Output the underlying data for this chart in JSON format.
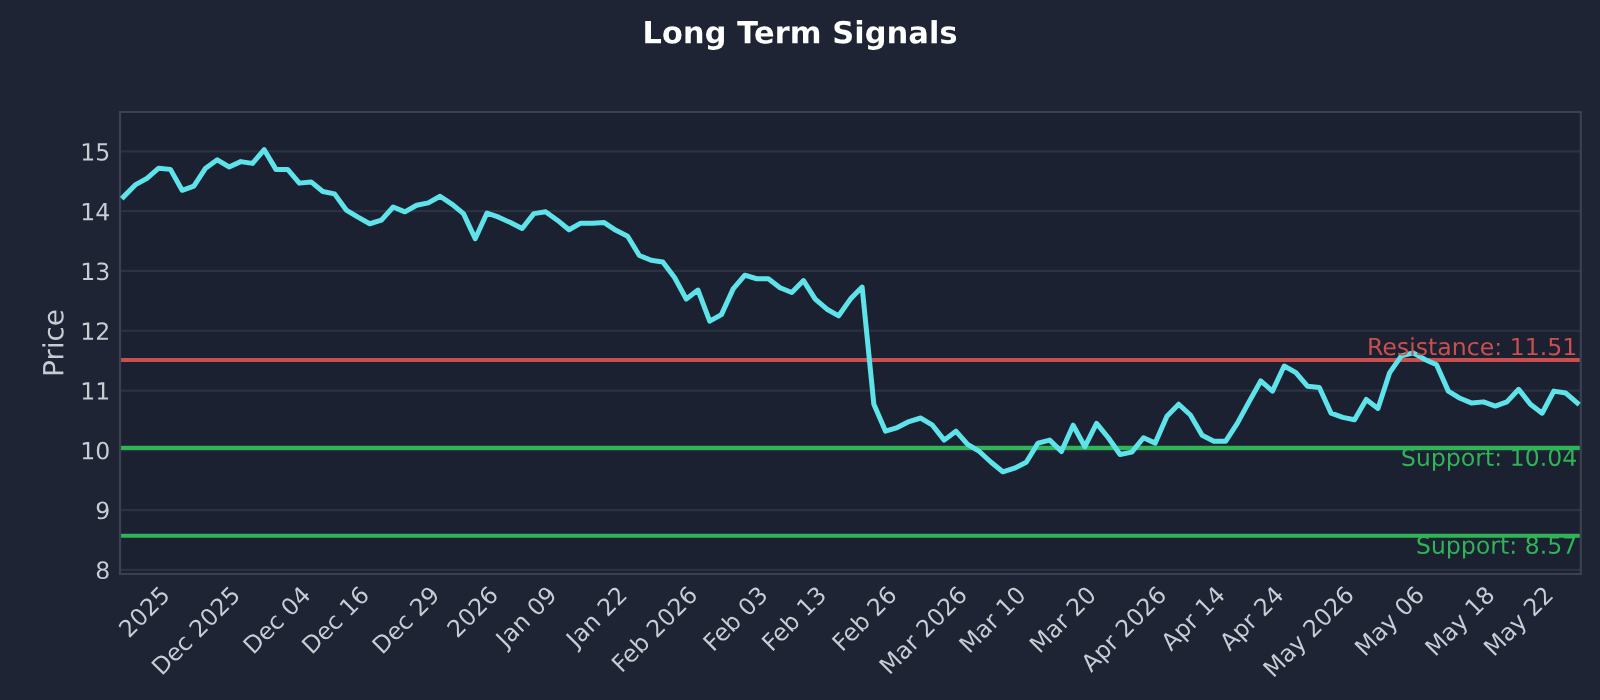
{
  "chart_data": {
    "type": "line",
    "title": "Long Term Signals",
    "ylabel": "Price",
    "categories": [
      null,
      null,
      null,
      "2025",
      null,
      null,
      null,
      null,
      null,
      "Dec 2025",
      null,
      null,
      null,
      null,
      null,
      "Dec 04",
      null,
      null,
      null,
      null,
      "Dec 16",
      null,
      null,
      null,
      null,
      null,
      "Dec 29",
      null,
      null,
      null,
      null,
      "2026",
      null,
      null,
      null,
      null,
      "Jan 09",
      null,
      null,
      null,
      null,
      null,
      "Jan 22",
      null,
      null,
      null,
      null,
      null,
      "Feb 2026",
      null,
      null,
      null,
      null,
      null,
      "Feb 03",
      null,
      null,
      null,
      null,
      "Feb 13",
      null,
      null,
      null,
      null,
      null,
      "Feb 26",
      null,
      null,
      null,
      null,
      null,
      "Mar 2026",
      null,
      null,
      null,
      null,
      "Mar 10",
      null,
      null,
      null,
      null,
      null,
      "Mar 20",
      null,
      null,
      null,
      null,
      null,
      "Apr 2026",
      null,
      null,
      null,
      null,
      "Apr 14",
      null,
      null,
      null,
      null,
      "Apr 24",
      null,
      null,
      null,
      null,
      null,
      "May 2026",
      null,
      null,
      null,
      null,
      null,
      "May 06",
      null,
      null,
      null,
      null,
      null,
      "May 18",
      null,
      null,
      null,
      null,
      "May 22",
      null,
      null,
      null
    ],
    "series": [
      {
        "color": "#5fe3ea",
        "values": [
          14.24,
          14.44,
          14.55,
          14.72,
          14.7,
          14.35,
          14.42,
          14.72,
          14.86,
          14.74,
          14.83,
          14.8,
          15.03,
          14.7,
          14.7,
          14.47,
          14.49,
          14.33,
          14.29,
          14.02,
          13.9,
          13.79,
          13.85,
          14.07,
          13.99,
          14.1,
          14.14,
          14.25,
          14.12,
          13.96,
          13.54,
          13.97,
          13.9,
          13.81,
          13.71,
          13.96,
          13.99,
          13.85,
          13.69,
          13.8,
          13.8,
          13.81,
          13.68,
          13.58,
          13.26,
          13.18,
          13.15,
          12.89,
          12.53,
          12.68,
          12.16,
          12.27,
          12.7,
          12.93,
          12.87,
          12.87,
          12.72,
          12.64,
          12.84,
          12.53,
          12.36,
          12.25,
          12.53,
          12.73,
          10.77,
          10.32,
          10.38,
          10.48,
          10.54,
          10.42,
          10.17,
          10.32,
          10.1,
          9.98,
          9.8,
          9.64,
          9.7,
          9.8,
          10.12,
          10.17,
          9.98,
          10.42,
          10.06,
          10.45,
          10.21,
          9.93,
          9.97,
          10.21,
          10.12,
          10.57,
          10.77,
          10.59,
          10.25,
          10.15,
          10.15,
          10.45,
          10.81,
          11.16,
          10.99,
          11.41,
          11.3,
          11.07,
          11.05,
          10.62,
          10.55,
          10.51,
          10.85,
          10.7,
          11.3,
          11.58,
          11.63,
          11.52,
          11.43,
          10.99,
          10.87,
          10.79,
          10.81,
          10.74,
          10.81,
          11.02,
          10.77,
          10.62,
          10.99,
          10.96,
          10.79
        ]
      }
    ],
    "ylim": [
      7.93,
      15.66
    ],
    "yticks": [
      8,
      9,
      10,
      11,
      12,
      13,
      14,
      15
    ],
    "grid": "y",
    "ref_lines": [
      {
        "axis": "y",
        "value": 11.51,
        "label": "Resistance: 11.51",
        "color": "#c9504f"
      },
      {
        "axis": "y",
        "value": 10.04,
        "label": "Support: 10.04",
        "color": "#2fb457"
      },
      {
        "axis": "y",
        "value": 8.57,
        "label": "Support: 8.57",
        "color": "#2fb457"
      }
    ]
  }
}
